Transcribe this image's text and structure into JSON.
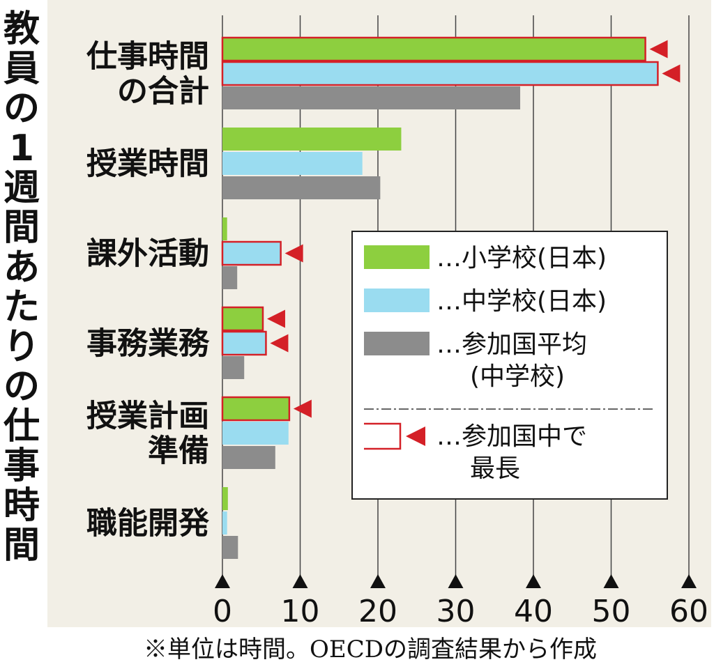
{
  "title": "教員の1週間あたりの仕事時間",
  "footnote": "※単位は時間。OECDの調査結果から作成",
  "legend": {
    "items": [
      {
        "key": "elementary",
        "label": "…小学校(日本)"
      },
      {
        "key": "junior",
        "label": "…中学校(日本)"
      },
      {
        "key": "average",
        "label": "…参加国平均 (中学校)"
      },
      {
        "key": "longest",
        "label": "…参加国中で 最長"
      }
    ]
  },
  "colors": {
    "elementary": "#8dcf3f",
    "junior": "#9adcf0",
    "average": "#8c8c8c",
    "longest": "#d42027",
    "background": "#f2efe6"
  },
  "chart_data": {
    "type": "bar",
    "orientation": "horizontal",
    "categories": [
      "仕事時間の合計",
      "授業時間",
      "課外活動",
      "事務業務",
      "授業計画準備",
      "職能開発"
    ],
    "series": [
      {
        "name": "小学校(日本)",
        "values": [
          54.4,
          23.0,
          0.6,
          5.2,
          8.6,
          0.7
        ],
        "longest": [
          true,
          false,
          false,
          true,
          true,
          false
        ]
      },
      {
        "name": "中学校(日本)",
        "values": [
          56.0,
          18.0,
          7.5,
          5.6,
          8.5,
          0.6
        ],
        "longest": [
          true,
          false,
          true,
          true,
          false,
          false
        ]
      },
      {
        "name": "参加国平均(中学校)",
        "values": [
          38.3,
          20.3,
          1.9,
          2.8,
          6.8,
          2.0
        ],
        "longest": [
          false,
          false,
          false,
          false,
          false,
          false
        ]
      }
    ],
    "xlim": [
      0,
      60
    ],
    "xticks": [
      "0",
      "10",
      "20",
      "30",
      "40",
      "50",
      "60"
    ],
    "grid": true,
    "legend_position": "right"
  }
}
